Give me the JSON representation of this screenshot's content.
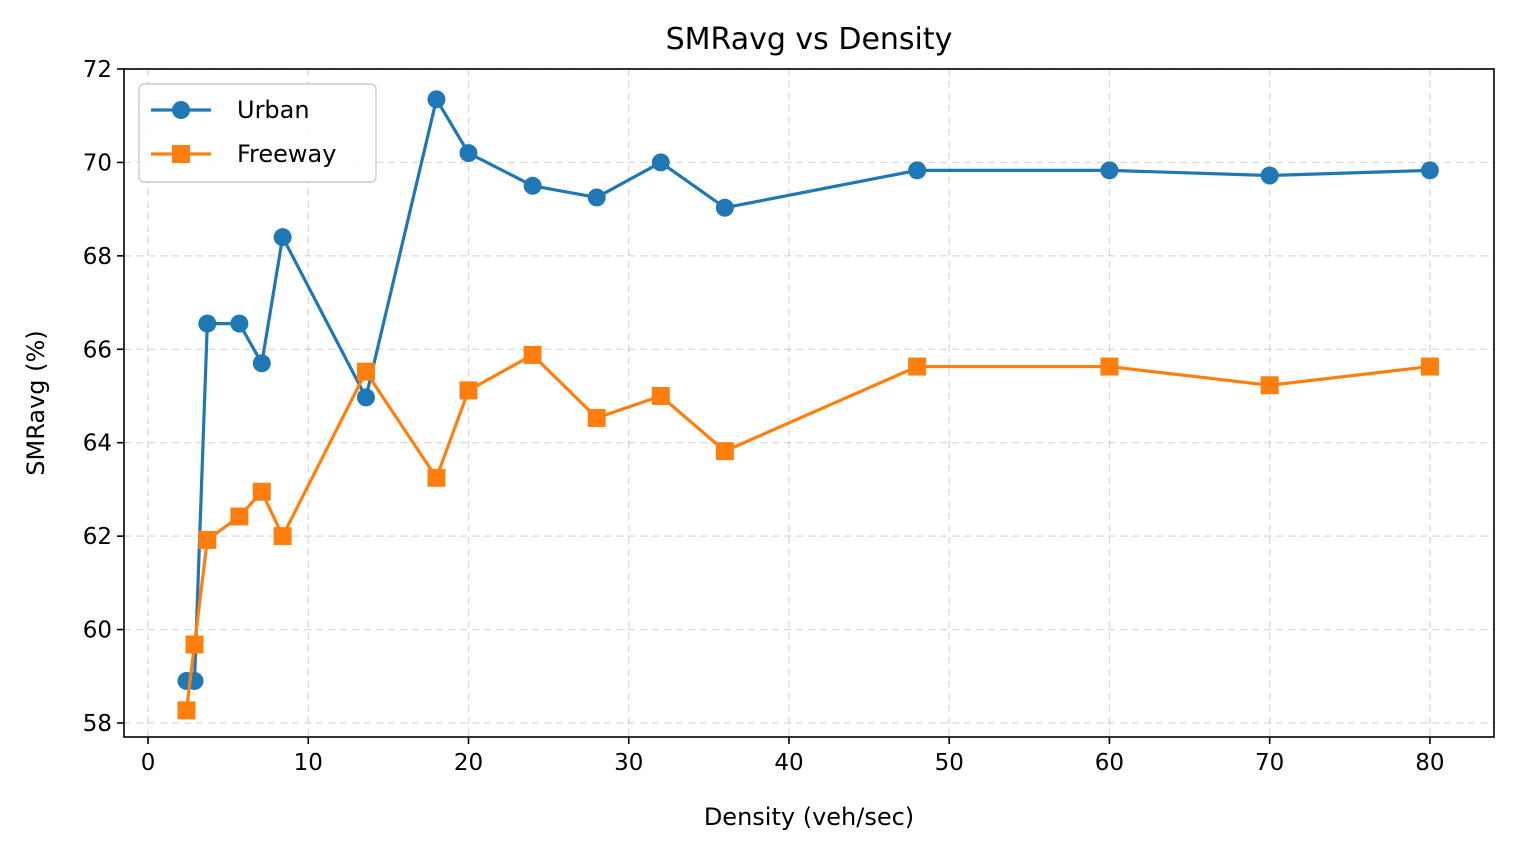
{
  "chart_data": {
    "type": "line",
    "title": "SMRavg vs Density",
    "xlabel": "Density (veh/sec)",
    "ylabel": "SMRavg (%)",
    "xlim": [
      -1.5,
      84
    ],
    "ylim": [
      57.7,
      72
    ],
    "xticks": [
      0,
      10,
      20,
      30,
      40,
      50,
      60,
      70,
      80
    ],
    "yticks": [
      58,
      60,
      62,
      64,
      66,
      68,
      70,
      72
    ],
    "grid": true,
    "legend_position": "top-left",
    "series": [
      {
        "name": "Urban",
        "color": "#1f77b4",
        "marker": "circle",
        "x": [
          2.4,
          2.9,
          3.7,
          5.7,
          7.1,
          8.4,
          13.6,
          18,
          20,
          24,
          28,
          32,
          36,
          48,
          60,
          70,
          80
        ],
        "y": [
          58.9,
          58.9,
          66.55,
          66.55,
          65.7,
          68.4,
          64.97,
          71.35,
          70.2,
          69.5,
          69.25,
          70,
          69.03,
          69.83,
          69.83,
          69.72,
          69.83
        ]
      },
      {
        "name": "Freeway",
        "color": "#ff7f0e",
        "marker": "square",
        "x": [
          2.4,
          2.9,
          3.7,
          5.7,
          7.1,
          8.4,
          13.6,
          18,
          20,
          24,
          28,
          32,
          36,
          48,
          60,
          70,
          80
        ],
        "y": [
          58.27,
          59.68,
          61.92,
          62.42,
          62.95,
          62.0,
          65.52,
          63.25,
          65.12,
          65.88,
          64.53,
          65.0,
          63.82,
          65.63,
          65.63,
          65.23,
          65.63
        ]
      }
    ]
  }
}
